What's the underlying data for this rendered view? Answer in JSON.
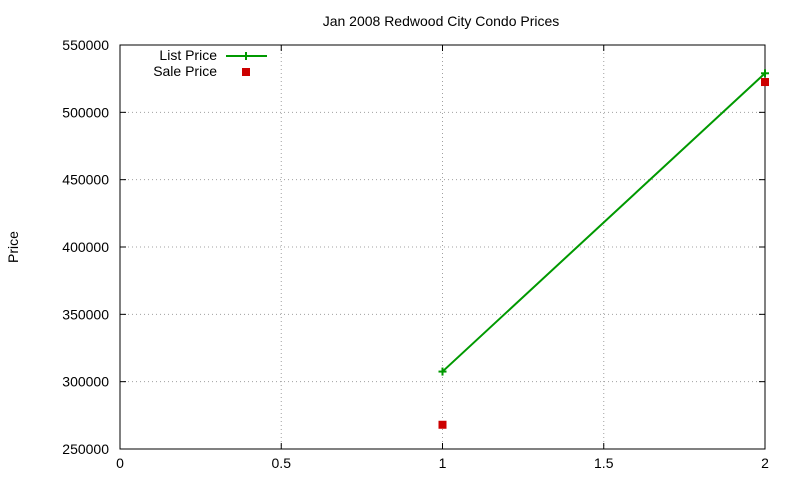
{
  "chart_data": {
    "type": "line",
    "title": "Jan 2008 Redwood City Condo Prices",
    "xlabel": "",
    "ylabel": "Price",
    "xlim": [
      0,
      2
    ],
    "ylim": [
      250000,
      550000
    ],
    "x_ticks": [
      {
        "value": 0,
        "label": "0"
      },
      {
        "value": 0.5,
        "label": "0.5"
      },
      {
        "value": 1,
        "label": "1"
      },
      {
        "value": 1.5,
        "label": "1.5"
      },
      {
        "value": 2,
        "label": "2"
      }
    ],
    "y_ticks": [
      {
        "value": 250000,
        "label": "250000"
      },
      {
        "value": 300000,
        "label": "300000"
      },
      {
        "value": 350000,
        "label": "350000"
      },
      {
        "value": 400000,
        "label": "400000"
      },
      {
        "value": 450000,
        "label": "450000"
      },
      {
        "value": 500000,
        "label": "500000"
      },
      {
        "value": 550000,
        "label": "550000"
      }
    ],
    "grid": true,
    "legend_position": "top-left",
    "series": [
      {
        "name": "List Price",
        "style": "linespoints",
        "marker": "plus",
        "color": "#009900",
        "points": [
          {
            "x": 1,
            "y": 307500
          },
          {
            "x": 2,
            "y": 529000
          }
        ]
      },
      {
        "name": "Sale Price",
        "style": "points",
        "marker": "square",
        "color": "#cc0000",
        "points": [
          {
            "x": 1,
            "y": 268000
          },
          {
            "x": 2,
            "y": 522500
          }
        ]
      }
    ]
  }
}
